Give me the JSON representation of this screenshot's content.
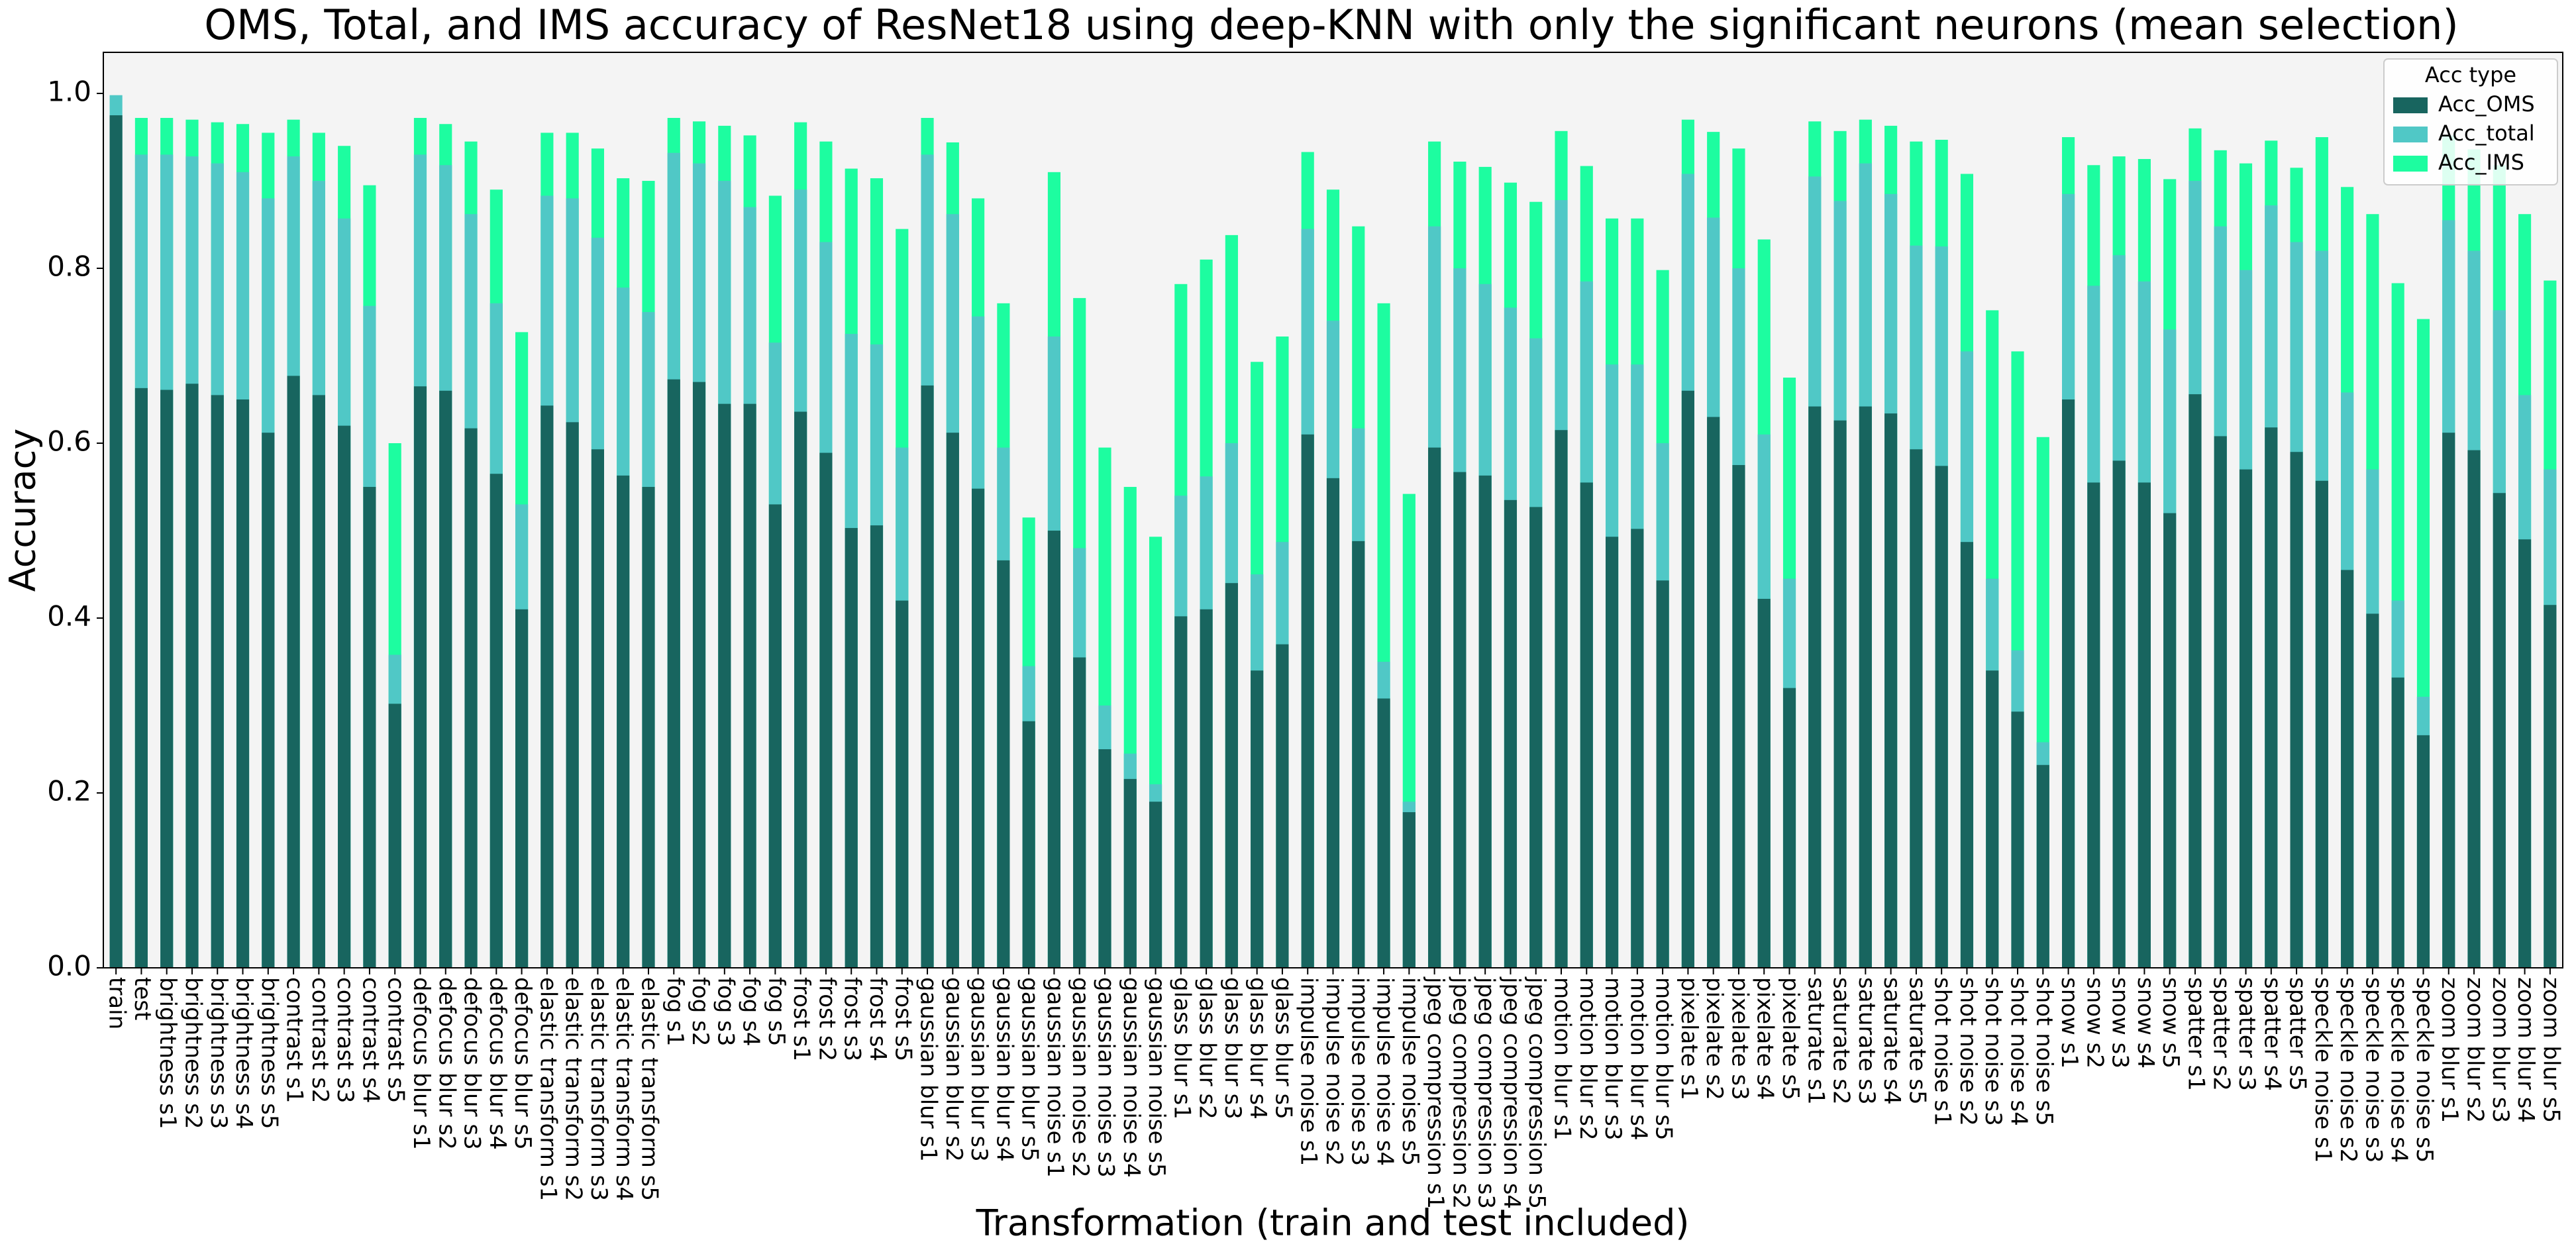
{
  "chart_data": {
    "type": "bar",
    "barmode": "overlay",
    "title": "OMS, Total,  and IMS accuracy of ResNet18 using deep-KNN with only the significant neurons (mean selection)",
    "xlabel": "Transformation (train and test included)",
    "ylabel": "Accuracy",
    "categories": [
      "train",
      "test",
      "brightness s1",
      "brightness s2",
      "brightness s3",
      "brightness s4",
      "brightness s5",
      "contrast s1",
      "contrast s2",
      "contrast s3",
      "contrast s4",
      "contrast s5",
      "defocus blur s1",
      "defocus blur s2",
      "defocus blur s3",
      "defocus blur s4",
      "defocus blur s5",
      "elastic transform s1",
      "elastic transform s2",
      "elastic transform s3",
      "elastic transform s4",
      "elastic transform s5",
      "fog s1",
      "fog s2",
      "fog s3",
      "fog s4",
      "fog s5",
      "frost s1",
      "frost s2",
      "frost s3",
      "frost s4",
      "frost s5",
      "gaussian blur s1",
      "gaussian blur s2",
      "gaussian blur s3",
      "gaussian blur s4",
      "gaussian blur s5",
      "gaussian noise s1",
      "gaussian noise s2",
      "gaussian noise s3",
      "gaussian noise s4",
      "gaussian noise s5",
      "glass blur s1",
      "glass blur s2",
      "glass blur s3",
      "glass blur s4",
      "glass blur s5",
      "impulse noise s1",
      "impulse noise s2",
      "impulse noise s3",
      "impulse noise s4",
      "impulse noise s5",
      "jpeg compression s1",
      "jpeg compression s2",
      "jpeg compression s3",
      "jpeg compression s4",
      "jpeg compression s5",
      "motion blur s1",
      "motion blur s2",
      "motion blur s3",
      "motion blur s4",
      "motion blur s5",
      "pixelate s1",
      "pixelate s2",
      "pixelate s3",
      "pixelate s4",
      "pixelate s5",
      "saturate s1",
      "saturate s2",
      "saturate s3",
      "saturate s4",
      "saturate s5",
      "shot noise s1",
      "shot noise s2",
      "shot noise s3",
      "shot noise s4",
      "shot noise s5",
      "snow s1",
      "snow s2",
      "snow s3",
      "snow s4",
      "snow s5",
      "spatter s1",
      "spatter s2",
      "spatter s3",
      "spatter s4",
      "spatter s5",
      "speckle noise s1",
      "speckle noise s2",
      "speckle noise s3",
      "speckle noise s4",
      "speckle noise s5",
      "zoom blur s1",
      "zoom blur s2",
      "zoom blur s3",
      "zoom blur s4",
      "zoom blur s5"
    ],
    "series": [
      {
        "name": "Acc_OMS",
        "color": "#18655f",
        "values": [
          0.975,
          0.663,
          0.661,
          0.668,
          0.655,
          0.65,
          0.612,
          0.677,
          0.655,
          0.62,
          0.55,
          0.302,
          0.665,
          0.66,
          0.617,
          0.565,
          0.41,
          0.643,
          0.624,
          0.593,
          0.563,
          0.55,
          0.673,
          0.67,
          0.645,
          0.645,
          0.53,
          0.636,
          0.589,
          0.503,
          0.506,
          0.42,
          0.666,
          0.612,
          0.548,
          0.466,
          0.282,
          0.5,
          0.355,
          0.25,
          0.216,
          0.19,
          0.402,
          0.41,
          0.44,
          0.34,
          0.37,
          0.61,
          0.56,
          0.488,
          0.308,
          0.178,
          0.595,
          0.567,
          0.563,
          0.535,
          0.527,
          0.615,
          0.555,
          0.493,
          0.502,
          0.443,
          0.66,
          0.63,
          0.575,
          0.422,
          0.32,
          0.642,
          0.626,
          0.642,
          0.634,
          0.593,
          0.574,
          0.487,
          0.34,
          0.293,
          0.232,
          0.65,
          0.555,
          0.58,
          0.555,
          0.52,
          0.656,
          0.608,
          0.57,
          0.618,
          0.59,
          0.557,
          0.455,
          0.405,
          0.332,
          0.266,
          0.612,
          0.592,
          0.543,
          0.49,
          0.415
        ]
      },
      {
        "name": "Acc_total",
        "color": "#50c8c6",
        "values": [
          0.998,
          0.93,
          0.93,
          0.928,
          0.92,
          0.91,
          0.88,
          0.928,
          0.9,
          0.857,
          0.757,
          0.358,
          0.93,
          0.918,
          0.862,
          0.76,
          0.53,
          0.883,
          0.88,
          0.835,
          0.778,
          0.75,
          0.932,
          0.92,
          0.9,
          0.87,
          0.715,
          0.89,
          0.83,
          0.725,
          0.713,
          0.595,
          0.93,
          0.862,
          0.745,
          0.595,
          0.345,
          0.722,
          0.48,
          0.3,
          0.245,
          0.21,
          0.54,
          0.562,
          0.6,
          0.45,
          0.487,
          0.845,
          0.74,
          0.617,
          0.35,
          0.19,
          0.848,
          0.8,
          0.782,
          0.755,
          0.72,
          0.878,
          0.785,
          0.69,
          0.69,
          0.6,
          0.908,
          0.858,
          0.8,
          0.61,
          0.445,
          0.905,
          0.877,
          0.92,
          0.885,
          0.826,
          0.825,
          0.705,
          0.445,
          0.363,
          0.258,
          0.885,
          0.78,
          0.815,
          0.785,
          0.73,
          0.9,
          0.848,
          0.798,
          0.872,
          0.83,
          0.82,
          0.658,
          0.57,
          0.42,
          0.31,
          0.855,
          0.82,
          0.752,
          0.655,
          0.57
        ]
      },
      {
        "name": "Acc_IMS",
        "color": "#1dfda0",
        "values": [
          null,
          0.972,
          0.972,
          0.97,
          0.967,
          0.965,
          0.955,
          0.97,
          0.955,
          0.94,
          0.895,
          0.6,
          0.972,
          0.965,
          0.945,
          0.89,
          0.727,
          0.955,
          0.955,
          0.937,
          0.903,
          0.9,
          0.972,
          0.968,
          0.963,
          0.952,
          0.883,
          0.967,
          0.945,
          0.914,
          0.903,
          0.845,
          0.972,
          0.944,
          0.88,
          0.76,
          0.515,
          0.91,
          0.766,
          0.595,
          0.55,
          0.493,
          0.782,
          0.81,
          0.838,
          0.693,
          0.722,
          0.933,
          0.89,
          0.848,
          0.76,
          0.542,
          0.945,
          0.922,
          0.916,
          0.898,
          0.876,
          0.957,
          0.917,
          0.857,
          0.857,
          0.798,
          0.97,
          0.956,
          0.937,
          0.833,
          0.675,
          0.968,
          0.957,
          0.97,
          0.963,
          0.945,
          0.947,
          0.908,
          0.752,
          0.705,
          0.607,
          0.95,
          0.918,
          0.928,
          0.925,
          0.902,
          0.96,
          0.935,
          0.92,
          0.946,
          0.915,
          0.95,
          0.893,
          0.862,
          0.783,
          0.742,
          0.952,
          0.936,
          0.918,
          0.862,
          0.786
        ]
      }
    ],
    "ylim": [
      0,
      1.047
    ],
    "yticks": [
      {
        "value": 0,
        "label": "0.0"
      },
      0.2,
      0.4,
      0.6,
      0.8,
      {
        "value": 1,
        "label": "1.0"
      }
    ],
    "legend": {
      "title": "Acc type",
      "position": "upper right"
    },
    "plot_background": "#f4f4f4"
  }
}
